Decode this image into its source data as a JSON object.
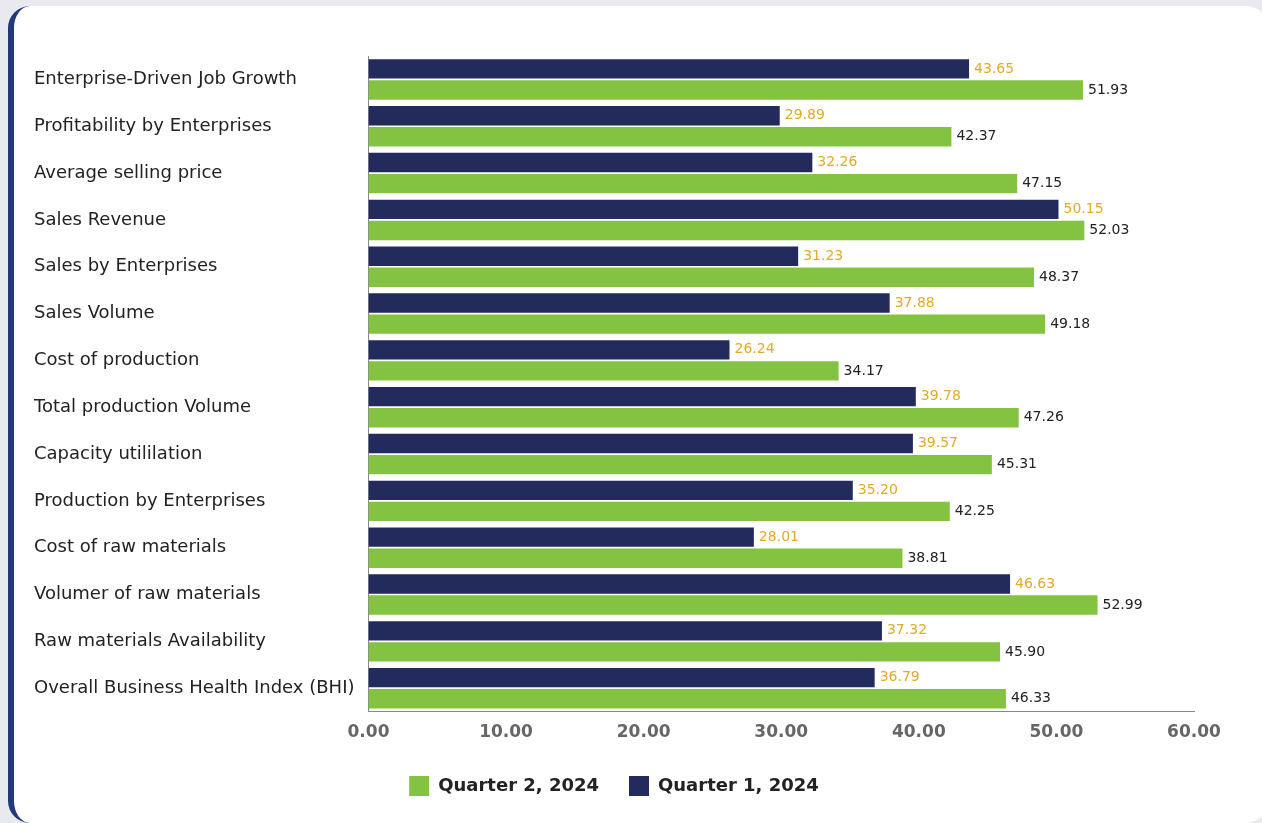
{
  "chart_data": {
    "type": "bar",
    "orientation": "horizontal",
    "categories": [
      "Enterprise-Driven Job Growth",
      "Profitability by Enterprises",
      "Average selling price",
      "Sales Revenue",
      "Sales by Enterprises",
      "Sales Volume",
      "Cost of production",
      "Total production Volume",
      "Capacity utililation",
      "Production by Enterprises",
      "Cost of raw materials",
      "Volumer of raw materials",
      "Raw materials Availability",
      "Overall Business Health Index (BHI)"
    ],
    "series": [
      {
        "name": "Quarter 1, 2024",
        "color": "#232a5c",
        "values": [
          43.65,
          29.89,
          32.26,
          50.15,
          31.23,
          37.88,
          26.24,
          39.78,
          39.57,
          35.2,
          28.01,
          46.63,
          37.32,
          36.79
        ],
        "value_labels": [
          "43.65",
          "29.89",
          "32.26",
          "50.15",
          "31.23",
          "37.88",
          "26.24",
          "39.78",
          "39.57",
          "35.20",
          "28.01",
          "46.63",
          "37.32",
          "36.79"
        ]
      },
      {
        "name": "Quarter 2, 2024",
        "color": "#84c341",
        "values": [
          51.93,
          42.37,
          47.15,
          52.03,
          48.37,
          49.18,
          34.17,
          47.26,
          45.31,
          42.25,
          38.81,
          52.99,
          45.9,
          46.33
        ],
        "value_labels": [
          "51.93",
          "42.37",
          "47.15",
          "52.03",
          "48.37",
          "49.18",
          "34.17",
          "47.26",
          "45.31",
          "42.25",
          "38.81",
          "52.99",
          "45.90",
          "46.33"
        ]
      }
    ],
    "xlim": [
      0,
      60
    ],
    "xticks": [
      {
        "value": 0,
        "label": "0.00"
      },
      {
        "value": 10,
        "label": "10.00"
      },
      {
        "value": 20,
        "label": "20.00"
      },
      {
        "value": 30,
        "label": "30.00"
      },
      {
        "value": 40,
        "label": "40.00"
      },
      {
        "value": 50,
        "label": "50.00"
      },
      {
        "value": 60,
        "label": "60.00"
      }
    ],
    "grid": false,
    "legend": "bottom"
  }
}
